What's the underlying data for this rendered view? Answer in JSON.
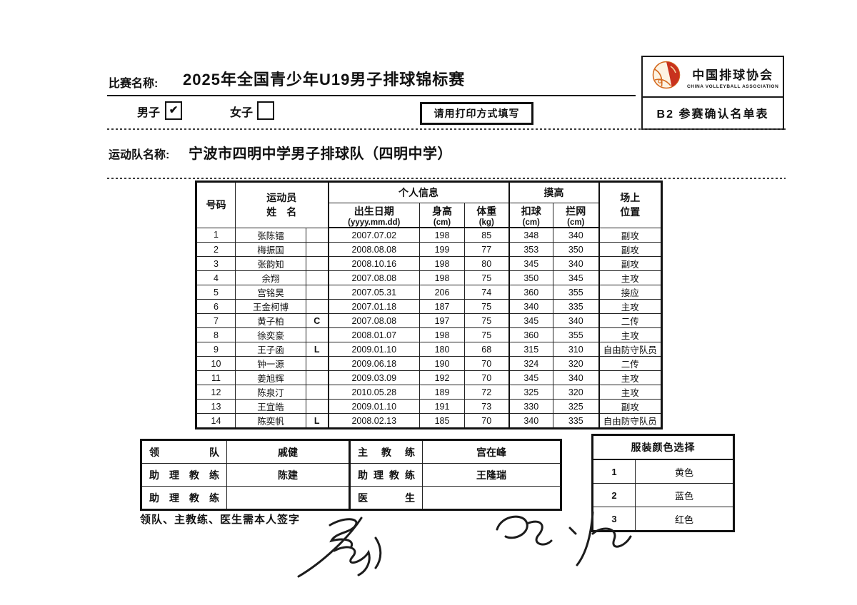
{
  "header": {
    "competition_label": "比赛名称:",
    "competition_name": "2025年全国青少年U19男子排球锦标赛",
    "male_label": "男子",
    "male_check": "✔",
    "female_label": "女子",
    "female_check": "",
    "print_notice": "请用打印方式填写",
    "org_name_cn": "中国排球协会",
    "org_name_en": "CHINA VOLLEYBALL ASSOCIATION",
    "form_code": "B2 参赛确认名单表"
  },
  "team": {
    "label": "运动队名称:",
    "name": "宁波市四明中学男子排球队（四明中学）"
  },
  "roster": {
    "headers": {
      "number": "号码",
      "athlete_line1": "运动员",
      "athlete_line2": "姓　名",
      "personal_info": "个人信息",
      "birth_date": "出生日期",
      "birth_format": "(yyyy.mm.dd)",
      "height": "身高",
      "height_unit": "(cm)",
      "weight": "体重",
      "weight_unit": "(kg)",
      "reach": "摸高",
      "spike": "扣球",
      "spike_unit": "(cm)",
      "block": "拦网",
      "block_unit": "(cm)",
      "position_line1": "场上",
      "position_line2": "位置"
    },
    "players": [
      {
        "no": "1",
        "name": "张陈镭",
        "role": "",
        "birth": "2007.07.02",
        "height": "198",
        "weight": "85",
        "spike": "348",
        "block": "340",
        "position": "副攻"
      },
      {
        "no": "2",
        "name": "梅振国",
        "role": "",
        "birth": "2008.08.08",
        "height": "199",
        "weight": "77",
        "spike": "353",
        "block": "350",
        "position": "副攻"
      },
      {
        "no": "3",
        "name": "张韵知",
        "role": "",
        "birth": "2008.10.16",
        "height": "198",
        "weight": "80",
        "spike": "345",
        "block": "340",
        "position": "副攻"
      },
      {
        "no": "4",
        "name": "余翔",
        "role": "",
        "birth": "2007.08.08",
        "height": "198",
        "weight": "75",
        "spike": "350",
        "block": "345",
        "position": "主攻"
      },
      {
        "no": "5",
        "name": "宫铭昊",
        "role": "",
        "birth": "2007.05.31",
        "height": "206",
        "weight": "74",
        "spike": "360",
        "block": "355",
        "position": "接应"
      },
      {
        "no": "6",
        "name": "王金柯博",
        "role": "",
        "birth": "2007.01.18",
        "height": "187",
        "weight": "75",
        "spike": "340",
        "block": "335",
        "position": "主攻"
      },
      {
        "no": "7",
        "name": "黄子柏",
        "role": "C",
        "birth": "2007.08.08",
        "height": "197",
        "weight": "75",
        "spike": "345",
        "block": "340",
        "position": "二传"
      },
      {
        "no": "8",
        "name": "徐奕豪",
        "role": "",
        "birth": "2008.01.07",
        "height": "198",
        "weight": "75",
        "spike": "360",
        "block": "355",
        "position": "主攻"
      },
      {
        "no": "9",
        "name": "王子函",
        "role": "L",
        "birth": "2009.01.10",
        "height": "180",
        "weight": "68",
        "spike": "315",
        "block": "310",
        "position": "自由防守队员"
      },
      {
        "no": "10",
        "name": "钟一源",
        "role": "",
        "birth": "2009.06.18",
        "height": "190",
        "weight": "70",
        "spike": "324",
        "block": "320",
        "position": "二传"
      },
      {
        "no": "11",
        "name": "姜旭辉",
        "role": "",
        "birth": "2009.03.09",
        "height": "192",
        "weight": "70",
        "spike": "345",
        "block": "340",
        "position": "主攻"
      },
      {
        "no": "12",
        "name": "陈泉汀",
        "role": "",
        "birth": "2010.05.28",
        "height": "189",
        "weight": "72",
        "spike": "325",
        "block": "320",
        "position": "主攻"
      },
      {
        "no": "13",
        "name": "王宜皓",
        "role": "",
        "birth": "2009.01.10",
        "height": "191",
        "weight": "73",
        "spike": "330",
        "block": "325",
        "position": "副攻"
      },
      {
        "no": "14",
        "name": "陈奕帆",
        "role": "L",
        "birth": "2008.02.13",
        "height": "185",
        "weight": "70",
        "spike": "340",
        "block": "335",
        "position": "自由防守队员"
      }
    ]
  },
  "staff": {
    "rows": [
      {
        "left_label": "领队",
        "left_name": "戚健",
        "right_label": "主教练",
        "right_name": "宫在峰"
      },
      {
        "left_label": "助理教练",
        "left_name": "陈建",
        "right_label": "助理教练",
        "right_name": "王隆瑞"
      },
      {
        "left_label": "助理教练",
        "left_name": "",
        "right_label": "医生",
        "right_name": ""
      }
    ]
  },
  "uniform": {
    "title": "服装颜色选择",
    "options": [
      {
        "no": "1",
        "color": "黄色"
      },
      {
        "no": "2",
        "color": "蓝色"
      },
      {
        "no": "3",
        "color": "红色"
      }
    ]
  },
  "footer": {
    "signature_note": "领队、主教练、医生需本人签字"
  },
  "colors": {
    "ink": "#111111",
    "logo_red": "#c8321e",
    "logo_orange": "#d4691e",
    "logo_cream": "#fdf3e3"
  }
}
